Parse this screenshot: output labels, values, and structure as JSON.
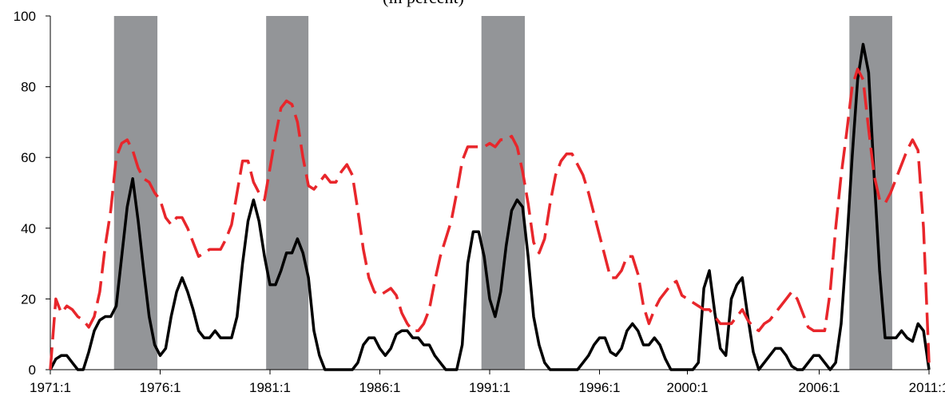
{
  "chart_data": {
    "type": "line",
    "title": "(in percent)",
    "categories": [
      "1971:1",
      null,
      null,
      null,
      null,
      null,
      null,
      null,
      null,
      null,
      null,
      null,
      null,
      null,
      null,
      null,
      null,
      null,
      null,
      null,
      "1976:1",
      null,
      null,
      null,
      null,
      null,
      null,
      null,
      null,
      null,
      null,
      null,
      null,
      null,
      null,
      null,
      null,
      null,
      null,
      null,
      "1981:1",
      null,
      null,
      null,
      null,
      null,
      null,
      null,
      null,
      null,
      null,
      null,
      null,
      null,
      null,
      null,
      null,
      null,
      null,
      null,
      "1986:1",
      null,
      null,
      null,
      null,
      null,
      null,
      null,
      null,
      null,
      null,
      null,
      null,
      null,
      null,
      null,
      null,
      null,
      null,
      null,
      "1991:1",
      null,
      null,
      null,
      null,
      null,
      null,
      null,
      null,
      null,
      null,
      null,
      null,
      null,
      null,
      null,
      null,
      null,
      null,
      null,
      "1996:1",
      null,
      null,
      null,
      null,
      null,
      null,
      null,
      null,
      null,
      null,
      null,
      null,
      null,
      null,
      null,
      "2000:1",
      null,
      null,
      null,
      null,
      null,
      null,
      null,
      null,
      null,
      null,
      null,
      null,
      null,
      null,
      null,
      null,
      null,
      null,
      null,
      null,
      null,
      null,
      null,
      "2006:1",
      null,
      null,
      null,
      null,
      null,
      null,
      null,
      null,
      null,
      null,
      null,
      null,
      null,
      null,
      null,
      null,
      null,
      null,
      null,
      "2011:1"
    ],
    "series": [
      {
        "color": "#000000",
        "dashed": false,
        "values": [
          0,
          3,
          4,
          4,
          2,
          0,
          0,
          5,
          11,
          14,
          15,
          15,
          18,
          32,
          46,
          54,
          42,
          28,
          15,
          7,
          4,
          6,
          15,
          22,
          26,
          22,
          17,
          11,
          9,
          9,
          11,
          9,
          9,
          9,
          15,
          30,
          42,
          48,
          42,
          32,
          24,
          24,
          28,
          33,
          33,
          37,
          33,
          26,
          11,
          4,
          0,
          0,
          0,
          0,
          0,
          0,
          2,
          7,
          9,
          9,
          6,
          4,
          6,
          10,
          11,
          11,
          9,
          9,
          7,
          7,
          4,
          2,
          0,
          0,
          0,
          7,
          30,
          39,
          39,
          32,
          20,
          15,
          22,
          35,
          45,
          48,
          46,
          32,
          15,
          7,
          2,
          0,
          0,
          0,
          0,
          0,
          0,
          2,
          4,
          7,
          9,
          9,
          5,
          4,
          6,
          11,
          13,
          11,
          7,
          7,
          9,
          7,
          3,
          0,
          0,
          0,
          0,
          0,
          2,
          23,
          28,
          16,
          6,
          4,
          20,
          24,
          26,
          15,
          5,
          0,
          2,
          4,
          6,
          6,
          4,
          1,
          0,
          0,
          2,
          4,
          4,
          2,
          0,
          2,
          13,
          35,
          60,
          82,
          92,
          84,
          55,
          28,
          9,
          9,
          9,
          11,
          9,
          8,
          13,
          11,
          0
        ]
      },
      {
        "color": "#e8262b",
        "dashed": true,
        "values": [
          0,
          20,
          16,
          18,
          17,
          15,
          14,
          12,
          15,
          22,
          35,
          45,
          60,
          64,
          65,
          62,
          57,
          54,
          53,
          50,
          48,
          43,
          41,
          43,
          43,
          40,
          36,
          32,
          33,
          34,
          34,
          34,
          37,
          41,
          50,
          59,
          59,
          53,
          50,
          48,
          57,
          66,
          74,
          76,
          75,
          70,
          60,
          52,
          51,
          53,
          55,
          53,
          53,
          56,
          58,
          55,
          45,
          34,
          26,
          22,
          21,
          22,
          23,
          21,
          16,
          13,
          11,
          11,
          13,
          17,
          25,
          32,
          37,
          42,
          50,
          59,
          63,
          63,
          63,
          63,
          64,
          63,
          65,
          65,
          66,
          63,
          56,
          47,
          36,
          33,
          37,
          47,
          55,
          59,
          61,
          61,
          58,
          55,
          50,
          44,
          38,
          32,
          26,
          26,
          28,
          32,
          32,
          27,
          18,
          13,
          17,
          20,
          22,
          24,
          25,
          21,
          20,
          19,
          18,
          17,
          17,
          15,
          13,
          13,
          13,
          15,
          17,
          14,
          12,
          11,
          13,
          14,
          16,
          18,
          20,
          22,
          20,
          16,
          12,
          11,
          11,
          11,
          22,
          40,
          55,
          67,
          80,
          85,
          82,
          68,
          55,
          48,
          47,
          50,
          54,
          58,
          62,
          65,
          62,
          40,
          2
        ]
      }
    ],
    "shaded_ranges": [
      [
        11.6,
        19.5
      ],
      [
        39.3,
        47
      ],
      [
        78.5,
        86.4
      ],
      [
        145.5,
        153.3
      ]
    ],
    "shade_color": "#939598",
    "ylim": [
      0,
      100
    ],
    "yticks": [
      0,
      20,
      40,
      60,
      80,
      100
    ],
    "grid": false
  }
}
